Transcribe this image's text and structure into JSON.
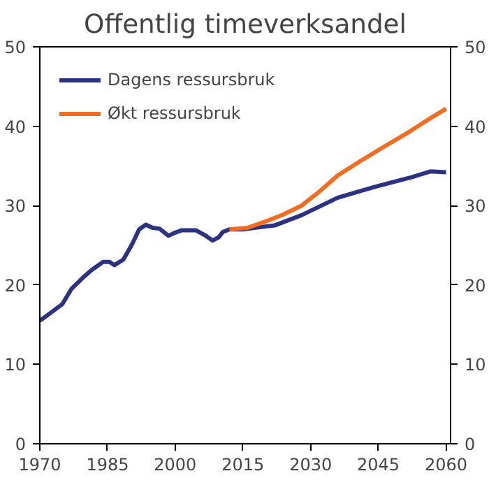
{
  "chart_data": {
    "type": "line",
    "title": "Offentlig timeverksandel",
    "xlim": [
      1970,
      2061
    ],
    "xticks": [
      1970,
      1985,
      2000,
      2015,
      2030,
      2045,
      2060
    ],
    "ylim": [
      0,
      50
    ],
    "yticks": [
      0,
      10,
      20,
      30,
      40,
      50
    ],
    "y2lim": [
      0,
      50
    ],
    "y2ticks": [
      0,
      10,
      20,
      30,
      40,
      50
    ],
    "grid": false,
    "legend": "top left",
    "marker": "none",
    "line_style": "solid",
    "series": [
      {
        "name": "Dagens ressursbruk",
        "color": "#2b3282",
        "x": [
          1970,
          1971,
          1975,
          1977,
          1979.5,
          1981.5,
          1984,
          1985.5,
          1986.5,
          1988.5,
          1990.5,
          1992,
          1993.5,
          1995,
          1996.5,
          1998.5,
          2000,
          2001.5,
          2004.5,
          2006.5,
          2008.3,
          2009.6,
          2010.6,
          2012,
          2015,
          2019,
          2022,
          2028,
          2036,
          2044.5,
          2052.5,
          2056.5,
          2060
        ],
        "values": [
          15.5,
          15.9,
          17.6,
          19.5,
          20.9,
          21.9,
          22.9,
          22.9,
          22.5,
          23.2,
          25.2,
          27.0,
          27.6,
          27.2,
          27.1,
          26.2,
          26.6,
          26.9,
          26.9,
          26.3,
          25.6,
          26.0,
          26.7,
          27.0,
          27.0,
          27.3,
          27.5,
          28.8,
          31.0,
          32.4,
          33.6,
          34.3,
          34.2
        ]
      },
      {
        "name": "Økt ressursbruk",
        "color": "#f26d21",
        "x": [
          2012,
          2016,
          2020,
          2024,
          2028,
          2032,
          2036,
          2041,
          2046.5,
          2051,
          2056.5,
          2060
        ],
        "values": [
          27.0,
          27.2,
          28.0,
          28.9,
          30.0,
          31.8,
          33.8,
          35.6,
          37.5,
          39.0,
          41.0,
          42.2
        ]
      }
    ]
  }
}
